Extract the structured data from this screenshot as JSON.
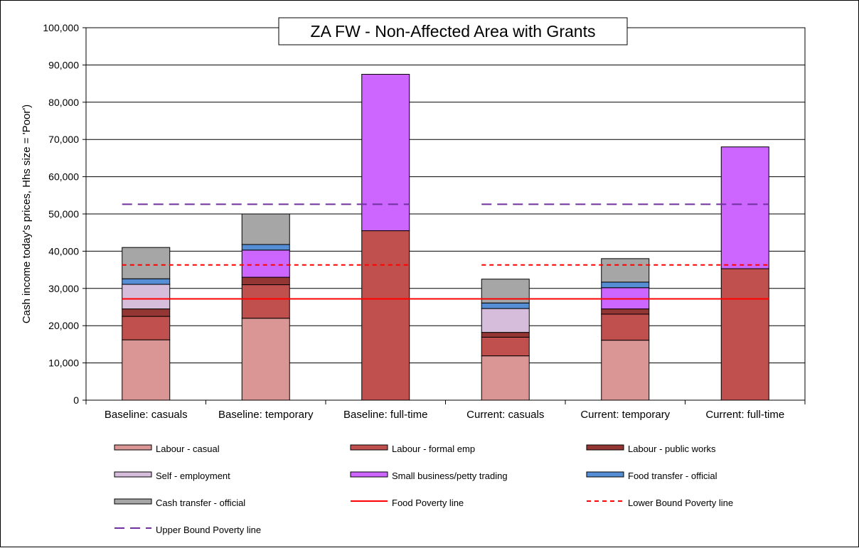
{
  "chart_data": {
    "type": "bar",
    "stacked": true,
    "title": "ZA FW - Non-Affected Area with Grants",
    "xlabel": "",
    "ylabel": "Cash income today's prices, Hhs size = 'Poor')",
    "ylim": [
      0,
      100000
    ],
    "yticks": [
      0,
      10000,
      20000,
      30000,
      40000,
      50000,
      60000,
      70000,
      80000,
      90000,
      100000
    ],
    "ytick_labels": [
      "0",
      "10,000",
      "20,000",
      "30,000",
      "40,000",
      "50,000",
      "60,000",
      "70,000",
      "80,000",
      "90,000",
      "100,000"
    ],
    "grid": true,
    "legend_position": "bottom",
    "categories": [
      "Baseline: casuals",
      "Baseline: temporary",
      "Baseline: full-time",
      "Current: casuals",
      "Current: temporary",
      "Current: full-time"
    ],
    "series": [
      {
        "name": "Labour - casual",
        "color": "#d99694",
        "values": [
          16200,
          22000,
          0,
          11900,
          16100,
          0
        ]
      },
      {
        "name": "Labour - formal emp",
        "color": "#c0504d",
        "values": [
          6300,
          9000,
          45500,
          5000,
          7000,
          35300
        ]
      },
      {
        "name": "Labour - public works",
        "color": "#943634",
        "values": [
          2000,
          2000,
          0,
          1300,
          1400,
          0
        ]
      },
      {
        "name": "Self - employment",
        "color": "#d5bddb",
        "values": [
          6600,
          0,
          0,
          6400,
          0,
          0
        ]
      },
      {
        "name": "Small business/petty trading",
        "color": "#cc66ff",
        "values": [
          0,
          7300,
          42000,
          0,
          5700,
          32700
        ]
      },
      {
        "name": "Food transfer - official",
        "color": "#558ed5",
        "values": [
          1500,
          1500,
          0,
          1500,
          1500,
          0
        ]
      },
      {
        "name": "Cash transfer - official",
        "color": "#a6a6a6",
        "values": [
          8400,
          8200,
          0,
          6400,
          6300,
          0
        ]
      }
    ],
    "lines": [
      {
        "name": "Food Poverty line",
        "color": "#ff0000",
        "style": "solid",
        "value": 27200,
        "spans": [
          [
            0,
            5
          ]
        ]
      },
      {
        "name": "Lower Bound Poverty line",
        "color": "#ff0000",
        "style": "dashed",
        "value": 36300,
        "spans": [
          [
            0,
            2
          ],
          [
            3,
            5
          ]
        ]
      },
      {
        "name": "Upper Bound Poverty line",
        "color": "#7030a0",
        "style": "dashed",
        "value": 52600,
        "spans": [
          [
            0,
            2
          ],
          [
            3,
            5
          ]
        ]
      }
    ]
  }
}
